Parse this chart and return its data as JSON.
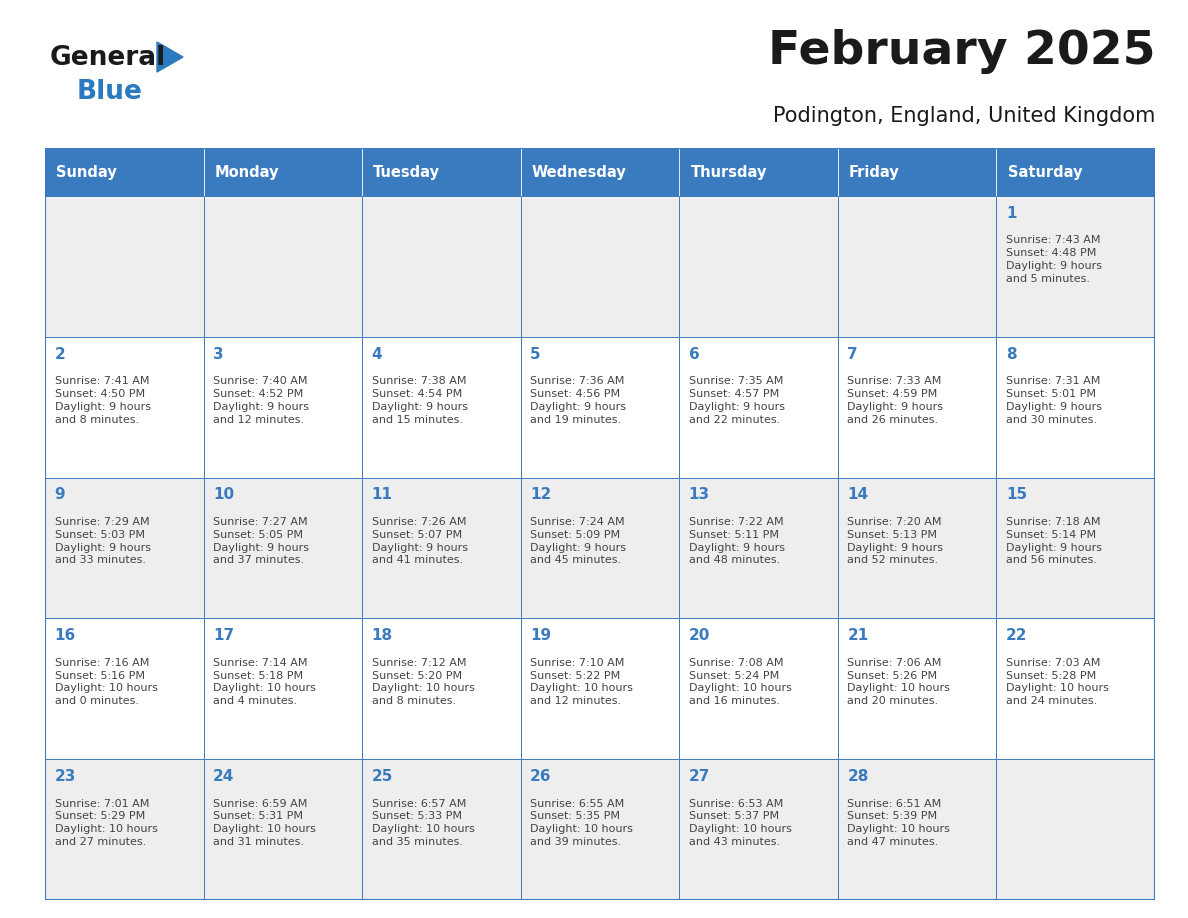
{
  "title": "February 2025",
  "subtitle": "Podington, England, United Kingdom",
  "days_of_week": [
    "Sunday",
    "Monday",
    "Tuesday",
    "Wednesday",
    "Thursday",
    "Friday",
    "Saturday"
  ],
  "header_bg": "#3a7abf",
  "header_text": "#ffffff",
  "row_bg": [
    "#eeeeee",
    "#ffffff",
    "#eeeeee",
    "#ffffff",
    "#eeeeee"
  ],
  "border_color": "#3a7abf",
  "text_color": "#444444",
  "day_number_color": "#3a7abf",
  "calendar_data": [
    [
      {
        "day": "",
        "lines": []
      },
      {
        "day": "",
        "lines": []
      },
      {
        "day": "",
        "lines": []
      },
      {
        "day": "",
        "lines": []
      },
      {
        "day": "",
        "lines": []
      },
      {
        "day": "",
        "lines": []
      },
      {
        "day": "1",
        "lines": [
          "Sunrise: 7:43 AM",
          "Sunset: 4:48 PM",
          "Daylight: 9 hours",
          "and 5 minutes."
        ]
      }
    ],
    [
      {
        "day": "2",
        "lines": [
          "Sunrise: 7:41 AM",
          "Sunset: 4:50 PM",
          "Daylight: 9 hours",
          "and 8 minutes."
        ]
      },
      {
        "day": "3",
        "lines": [
          "Sunrise: 7:40 AM",
          "Sunset: 4:52 PM",
          "Daylight: 9 hours",
          "and 12 minutes."
        ]
      },
      {
        "day": "4",
        "lines": [
          "Sunrise: 7:38 AM",
          "Sunset: 4:54 PM",
          "Daylight: 9 hours",
          "and 15 minutes."
        ]
      },
      {
        "day": "5",
        "lines": [
          "Sunrise: 7:36 AM",
          "Sunset: 4:56 PM",
          "Daylight: 9 hours",
          "and 19 minutes."
        ]
      },
      {
        "day": "6",
        "lines": [
          "Sunrise: 7:35 AM",
          "Sunset: 4:57 PM",
          "Daylight: 9 hours",
          "and 22 minutes."
        ]
      },
      {
        "day": "7",
        "lines": [
          "Sunrise: 7:33 AM",
          "Sunset: 4:59 PM",
          "Daylight: 9 hours",
          "and 26 minutes."
        ]
      },
      {
        "day": "8",
        "lines": [
          "Sunrise: 7:31 AM",
          "Sunset: 5:01 PM",
          "Daylight: 9 hours",
          "and 30 minutes."
        ]
      }
    ],
    [
      {
        "day": "9",
        "lines": [
          "Sunrise: 7:29 AM",
          "Sunset: 5:03 PM",
          "Daylight: 9 hours",
          "and 33 minutes."
        ]
      },
      {
        "day": "10",
        "lines": [
          "Sunrise: 7:27 AM",
          "Sunset: 5:05 PM",
          "Daylight: 9 hours",
          "and 37 minutes."
        ]
      },
      {
        "day": "11",
        "lines": [
          "Sunrise: 7:26 AM",
          "Sunset: 5:07 PM",
          "Daylight: 9 hours",
          "and 41 minutes."
        ]
      },
      {
        "day": "12",
        "lines": [
          "Sunrise: 7:24 AM",
          "Sunset: 5:09 PM",
          "Daylight: 9 hours",
          "and 45 minutes."
        ]
      },
      {
        "day": "13",
        "lines": [
          "Sunrise: 7:22 AM",
          "Sunset: 5:11 PM",
          "Daylight: 9 hours",
          "and 48 minutes."
        ]
      },
      {
        "day": "14",
        "lines": [
          "Sunrise: 7:20 AM",
          "Sunset: 5:13 PM",
          "Daylight: 9 hours",
          "and 52 minutes."
        ]
      },
      {
        "day": "15",
        "lines": [
          "Sunrise: 7:18 AM",
          "Sunset: 5:14 PM",
          "Daylight: 9 hours",
          "and 56 minutes."
        ]
      }
    ],
    [
      {
        "day": "16",
        "lines": [
          "Sunrise: 7:16 AM",
          "Sunset: 5:16 PM",
          "Daylight: 10 hours",
          "and 0 minutes."
        ]
      },
      {
        "day": "17",
        "lines": [
          "Sunrise: 7:14 AM",
          "Sunset: 5:18 PM",
          "Daylight: 10 hours",
          "and 4 minutes."
        ]
      },
      {
        "day": "18",
        "lines": [
          "Sunrise: 7:12 AM",
          "Sunset: 5:20 PM",
          "Daylight: 10 hours",
          "and 8 minutes."
        ]
      },
      {
        "day": "19",
        "lines": [
          "Sunrise: 7:10 AM",
          "Sunset: 5:22 PM",
          "Daylight: 10 hours",
          "and 12 minutes."
        ]
      },
      {
        "day": "20",
        "lines": [
          "Sunrise: 7:08 AM",
          "Sunset: 5:24 PM",
          "Daylight: 10 hours",
          "and 16 minutes."
        ]
      },
      {
        "day": "21",
        "lines": [
          "Sunrise: 7:06 AM",
          "Sunset: 5:26 PM",
          "Daylight: 10 hours",
          "and 20 minutes."
        ]
      },
      {
        "day": "22",
        "lines": [
          "Sunrise: 7:03 AM",
          "Sunset: 5:28 PM",
          "Daylight: 10 hours",
          "and 24 minutes."
        ]
      }
    ],
    [
      {
        "day": "23",
        "lines": [
          "Sunrise: 7:01 AM",
          "Sunset: 5:29 PM",
          "Daylight: 10 hours",
          "and 27 minutes."
        ]
      },
      {
        "day": "24",
        "lines": [
          "Sunrise: 6:59 AM",
          "Sunset: 5:31 PM",
          "Daylight: 10 hours",
          "and 31 minutes."
        ]
      },
      {
        "day": "25",
        "lines": [
          "Sunrise: 6:57 AM",
          "Sunset: 5:33 PM",
          "Daylight: 10 hours",
          "and 35 minutes."
        ]
      },
      {
        "day": "26",
        "lines": [
          "Sunrise: 6:55 AM",
          "Sunset: 5:35 PM",
          "Daylight: 10 hours",
          "and 39 minutes."
        ]
      },
      {
        "day": "27",
        "lines": [
          "Sunrise: 6:53 AM",
          "Sunset: 5:37 PM",
          "Daylight: 10 hours",
          "and 43 minutes."
        ]
      },
      {
        "day": "28",
        "lines": [
          "Sunrise: 6:51 AM",
          "Sunset: 5:39 PM",
          "Daylight: 10 hours",
          "and 47 minutes."
        ]
      },
      {
        "day": "",
        "lines": []
      }
    ]
  ],
  "logo_text_general": "General",
  "logo_text_blue": "Blue",
  "logo_color_general": "#1a1a1a",
  "logo_color_blue": "#2b7abf",
  "logo_triangle_color": "#2b7abf"
}
